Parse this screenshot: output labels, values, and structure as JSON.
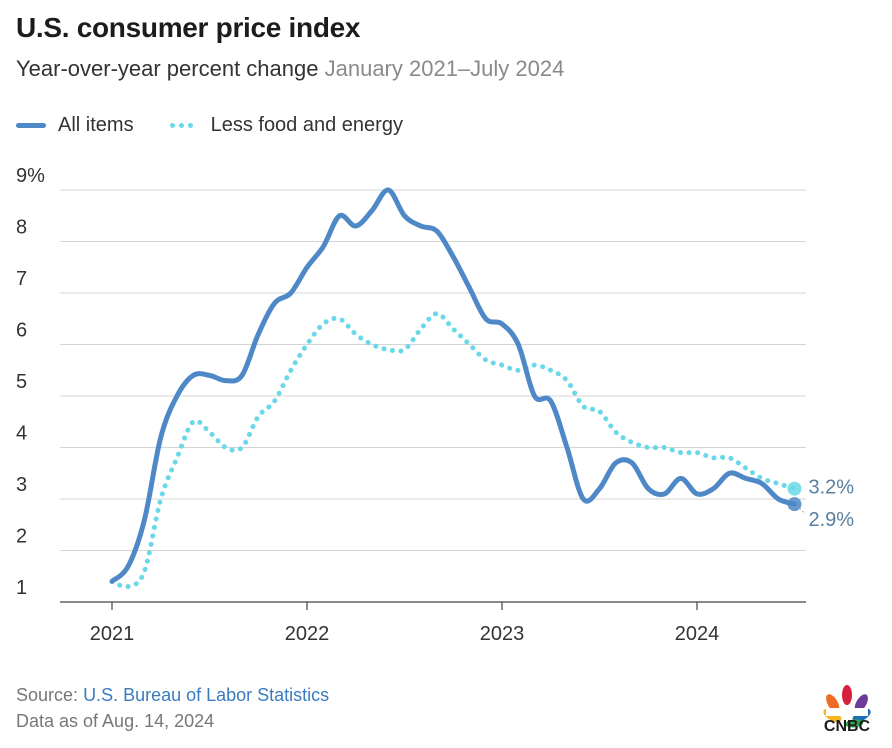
{
  "header": {
    "title": "U.S. consumer price index",
    "subtitle": "Year-over-year percent change",
    "date_range": "January 2021–July 2024"
  },
  "legend": [
    {
      "label": "All items",
      "style": "solid"
    },
    {
      "label": "Less food and energy",
      "style": "dotted"
    }
  ],
  "colors": {
    "all_items": "#4f88c6",
    "core": "#6ad8e8",
    "grid": "#d4d4d4",
    "axis": "#444444",
    "source_link": "#3a7cc0"
  },
  "footer": {
    "source_prefix": "Source:",
    "source_link": "U.S. Bureau of Labor Statistics",
    "data_as_of": "Data as of Aug. 14, 2024"
  },
  "logo": {
    "text": "CNBC",
    "icon": "peacock-icon"
  },
  "chart_data": {
    "type": "line",
    "title": "U.S. consumer price index",
    "subtitle": "Year-over-year percent change January 2021–July 2024",
    "xlabel": "",
    "ylabel": "",
    "x_ticks": [
      "2021",
      "2022",
      "2023",
      "2024"
    ],
    "y_ticks": [
      "1",
      "2",
      "3",
      "4",
      "5",
      "6",
      "7",
      "8",
      "9%"
    ],
    "ylim": [
      1,
      9
    ],
    "grid": true,
    "legend_position": "top-left",
    "x": [
      "2021-01",
      "2021-02",
      "2021-03",
      "2021-04",
      "2021-05",
      "2021-06",
      "2021-07",
      "2021-08",
      "2021-09",
      "2021-10",
      "2021-11",
      "2021-12",
      "2022-01",
      "2022-02",
      "2022-03",
      "2022-04",
      "2022-05",
      "2022-06",
      "2022-07",
      "2022-08",
      "2022-09",
      "2022-10",
      "2022-11",
      "2022-12",
      "2023-01",
      "2023-02",
      "2023-03",
      "2023-04",
      "2023-05",
      "2023-06",
      "2023-07",
      "2023-08",
      "2023-09",
      "2023-10",
      "2023-11",
      "2023-12",
      "2024-01",
      "2024-02",
      "2024-03",
      "2024-04",
      "2024-05",
      "2024-06",
      "2024-07"
    ],
    "series": [
      {
        "name": "All items",
        "values": [
          1.4,
          1.7,
          2.6,
          4.2,
          5.0,
          5.4,
          5.4,
          5.3,
          5.4,
          6.2,
          6.8,
          7.0,
          7.5,
          7.9,
          8.5,
          8.3,
          8.6,
          9.0,
          8.5,
          8.3,
          8.2,
          7.7,
          7.1,
          6.5,
          6.4,
          6.0,
          5.0,
          4.9,
          4.0,
          3.0,
          3.2,
          3.7,
          3.7,
          3.2,
          3.1,
          3.4,
          3.1,
          3.2,
          3.5,
          3.4,
          3.3,
          3.0,
          2.9
        ],
        "end_label": "2.9%"
      },
      {
        "name": "Less food and energy",
        "values": [
          1.4,
          1.3,
          1.6,
          3.0,
          3.8,
          4.5,
          4.3,
          4.0,
          4.0,
          4.6,
          4.9,
          5.5,
          6.0,
          6.4,
          6.5,
          6.2,
          6.0,
          5.9,
          5.9,
          6.3,
          6.6,
          6.3,
          6.0,
          5.7,
          5.6,
          5.5,
          5.6,
          5.5,
          5.3,
          4.8,
          4.7,
          4.3,
          4.1,
          4.0,
          4.0,
          3.9,
          3.9,
          3.8,
          3.8,
          3.6,
          3.4,
          3.3,
          3.2
        ],
        "end_label": "3.2%"
      }
    ]
  }
}
